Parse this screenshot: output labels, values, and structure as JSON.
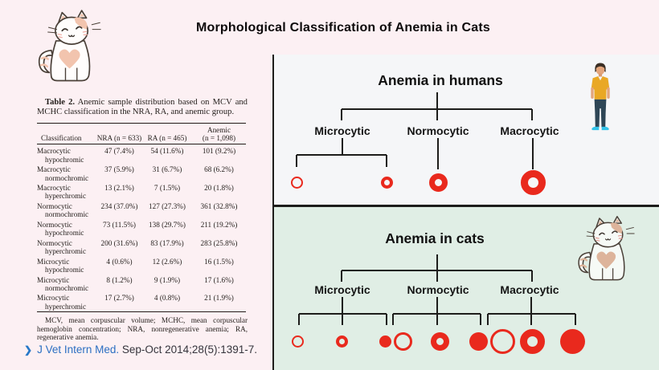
{
  "slide": {
    "title": "Morphological Classification of Anemia in Cats"
  },
  "colors": {
    "background": "#fcf0f3",
    "humans_panel": "#f5f6f8",
    "cats_panel": "#e0eee5",
    "line": "#1d1d1b",
    "red_cell": "#e9291d",
    "link_blue": "#2c6fc2"
  },
  "table": {
    "caption_label": "Table 2.",
    "caption_text": "Anemic sample distribution based on MCV and MCHC classification in the NRA, RA, and anemic group.",
    "columns": [
      "Classification",
      "NRA (n = 633)",
      "RA (n = 465)",
      "Anemic\n(n = 1,098)"
    ],
    "rows": [
      {
        "classification": [
          "Macrocytic",
          "hypochromic"
        ],
        "values": [
          "47 (7.4%)",
          "54 (11.6%)",
          "101 (9.2%)"
        ]
      },
      {
        "classification": [
          "Macrocytic",
          "normochromic"
        ],
        "values": [
          "37 (5.9%)",
          "31 (6.7%)",
          "68 (6.2%)"
        ]
      },
      {
        "classification": [
          "Macrocytic",
          "hyperchromic"
        ],
        "values": [
          "13 (2.1%)",
          "7 (1.5%)",
          "20 (1.8%)"
        ]
      },
      {
        "classification": [
          "Normocytic",
          "normochromic"
        ],
        "values": [
          "234 (37.0%)",
          "127 (27.3%)",
          "361 (32.8%)"
        ]
      },
      {
        "classification": [
          "Normocytic",
          "hypochromic"
        ],
        "values": [
          "73 (11.5%)",
          "138 (29.7%)",
          "211 (19.2%)"
        ]
      },
      {
        "classification": [
          "Normocytic",
          "hyperchromic"
        ],
        "values": [
          "200 (31.6%)",
          "83 (17.9%)",
          "283 (25.8%)"
        ]
      },
      {
        "classification": [
          "Microcytic",
          "hypochromic"
        ],
        "values": [
          "4 (0.6%)",
          "12 (2.6%)",
          "16 (1.5%)"
        ]
      },
      {
        "classification": [
          "Microcytic",
          "normochromic"
        ],
        "values": [
          "8 (1.2%)",
          "9 (1.9%)",
          "17 (1.6%)"
        ]
      },
      {
        "classification": [
          "Microcytic",
          "hyperchromic"
        ],
        "values": [
          "17 (2.7%)",
          "4 (0.8%)",
          "21 (1.9%)"
        ]
      }
    ],
    "footnote": "MCV, mean corpuscular volume; MCHC, mean corpuscular hemoglobin concentration; NRA, nonregenerative anemia; RA, regenerative anemia."
  },
  "citation": {
    "chevron": "❯",
    "journal": "J Vet Intern Med.",
    "details": " Sep-Oct 2014;28(5):1391-7."
  },
  "diagrams": [
    {
      "id": "humans",
      "title": "Anemia in humans",
      "figure": "person",
      "branches": [
        {
          "label": "Microcytic",
          "cells": [
            {
              "size": "small",
              "chromicity": "hypochromic"
            },
            {
              "size": "small",
              "chromicity": "normochromic"
            }
          ]
        },
        {
          "label": "Normocytic",
          "cells": [
            {
              "size": "medium",
              "chromicity": "normochromic"
            }
          ]
        },
        {
          "label": "Macrocytic",
          "cells": [
            {
              "size": "large",
              "chromicity": "normochromic"
            }
          ]
        }
      ]
    },
    {
      "id": "cats",
      "title": "Anemia in cats",
      "figure": "cat",
      "branches": [
        {
          "label": "Microcytic",
          "cells": [
            {
              "size": "small",
              "chromicity": "hypochromic"
            },
            {
              "size": "small",
              "chromicity": "normochromic"
            },
            {
              "size": "small",
              "chromicity": "hyperchromic"
            }
          ]
        },
        {
          "label": "Normocytic",
          "cells": [
            {
              "size": "medium",
              "chromicity": "hypochromic"
            },
            {
              "size": "medium",
              "chromicity": "normochromic"
            },
            {
              "size": "medium",
              "chromicity": "hyperchromic"
            }
          ]
        },
        {
          "label": "Macrocytic",
          "cells": [
            {
              "size": "large",
              "chromicity": "hypochromic"
            },
            {
              "size": "large",
              "chromicity": "normochromic"
            },
            {
              "size": "large",
              "chromicity": "hyperchromic"
            }
          ]
        }
      ]
    }
  ]
}
